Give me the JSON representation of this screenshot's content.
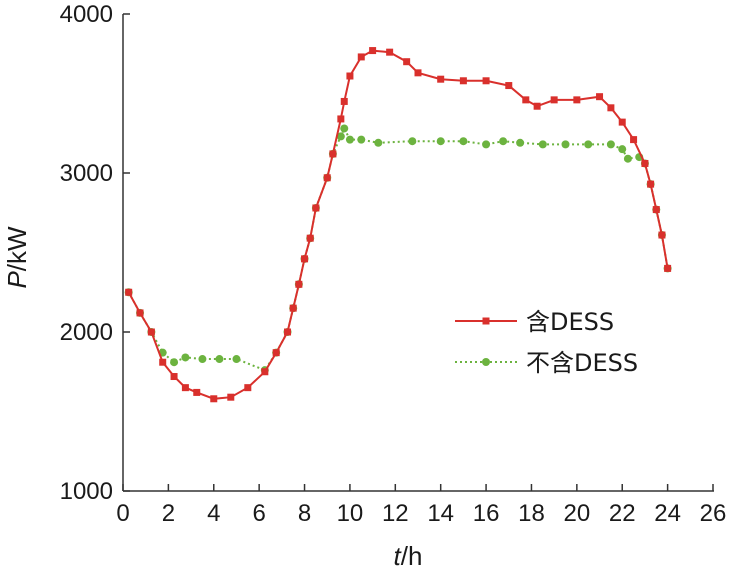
{
  "chart_data": {
    "type": "line",
    "xlabel": {
      "italic": "t",
      "rest": "/h"
    },
    "ylabel": {
      "italic": "P",
      "rest": "/kW"
    },
    "xlim": [
      0,
      26
    ],
    "ylim": [
      1000,
      4000
    ],
    "xticks": [
      0,
      2,
      4,
      6,
      8,
      10,
      12,
      14,
      16,
      18,
      20,
      22,
      24,
      26
    ],
    "yticks": [
      1000,
      2000,
      3000,
      4000
    ],
    "grid": false,
    "legend_position": "center-right",
    "series": [
      {
        "name": "含DESS",
        "color": "#d9302c",
        "line_style": "solid",
        "marker": "square",
        "points": [
          [
            0.25,
            2250
          ],
          [
            0.75,
            2120
          ],
          [
            1.25,
            2000
          ],
          [
            1.75,
            1810
          ],
          [
            2.25,
            1720
          ],
          [
            2.75,
            1650
          ],
          [
            3.25,
            1620
          ],
          [
            4.0,
            1580
          ],
          [
            4.75,
            1590
          ],
          [
            5.5,
            1650
          ],
          [
            6.25,
            1750
          ],
          [
            6.75,
            1870
          ],
          [
            7.25,
            2000
          ],
          [
            7.5,
            2150
          ],
          [
            7.75,
            2300
          ],
          [
            8.0,
            2460
          ],
          [
            8.25,
            2590
          ],
          [
            8.5,
            2780
          ],
          [
            9.0,
            2970
          ],
          [
            9.25,
            3120
          ],
          [
            9.6,
            3340
          ],
          [
            9.75,
            3450
          ],
          [
            10.0,
            3610
          ],
          [
            10.5,
            3730
          ],
          [
            11.0,
            3770
          ],
          [
            11.75,
            3760
          ],
          [
            12.5,
            3700
          ],
          [
            13.0,
            3630
          ],
          [
            14.0,
            3590
          ],
          [
            15.0,
            3580
          ],
          [
            16.0,
            3580
          ],
          [
            17.0,
            3550
          ],
          [
            17.75,
            3460
          ],
          [
            18.25,
            3420
          ],
          [
            19.0,
            3460
          ],
          [
            20.0,
            3460
          ],
          [
            21.0,
            3480
          ],
          [
            21.5,
            3410
          ],
          [
            22.0,
            3320
          ],
          [
            22.5,
            3210
          ],
          [
            23.0,
            3060
          ],
          [
            23.25,
            2930
          ],
          [
            23.5,
            2770
          ],
          [
            23.75,
            2610
          ],
          [
            24.0,
            2400
          ]
        ]
      },
      {
        "name": "不含DESS",
        "color": "#6cb33f",
        "line_style": "dotted",
        "marker": "circle",
        "points": [
          [
            0.25,
            2250
          ],
          [
            0.75,
            2120
          ],
          [
            1.25,
            2000
          ],
          [
            1.75,
            1870
          ],
          [
            2.25,
            1810
          ],
          [
            2.75,
            1840
          ],
          [
            3.5,
            1830
          ],
          [
            4.25,
            1830
          ],
          [
            5.0,
            1830
          ],
          [
            6.25,
            1760
          ],
          [
            6.75,
            1870
          ],
          [
            7.25,
            2000
          ],
          [
            7.5,
            2150
          ],
          [
            7.75,
            2300
          ],
          [
            8.0,
            2460
          ],
          [
            8.25,
            2590
          ],
          [
            8.5,
            2780
          ],
          [
            9.0,
            2970
          ],
          [
            9.25,
            3120
          ],
          [
            9.6,
            3230
          ],
          [
            9.75,
            3280
          ],
          [
            10.0,
            3210
          ],
          [
            10.5,
            3210
          ],
          [
            11.25,
            3190
          ],
          [
            12.75,
            3200
          ],
          [
            14.0,
            3200
          ],
          [
            15.0,
            3200
          ],
          [
            16.0,
            3180
          ],
          [
            16.75,
            3200
          ],
          [
            17.5,
            3190
          ],
          [
            18.5,
            3180
          ],
          [
            19.5,
            3180
          ],
          [
            20.5,
            3180
          ],
          [
            21.5,
            3180
          ],
          [
            22.0,
            3150
          ],
          [
            22.25,
            3090
          ],
          [
            22.75,
            3100
          ],
          [
            23.0,
            3060
          ],
          [
            23.25,
            2930
          ],
          [
            23.5,
            2770
          ],
          [
            23.75,
            2610
          ],
          [
            24.0,
            2400
          ]
        ]
      }
    ]
  }
}
